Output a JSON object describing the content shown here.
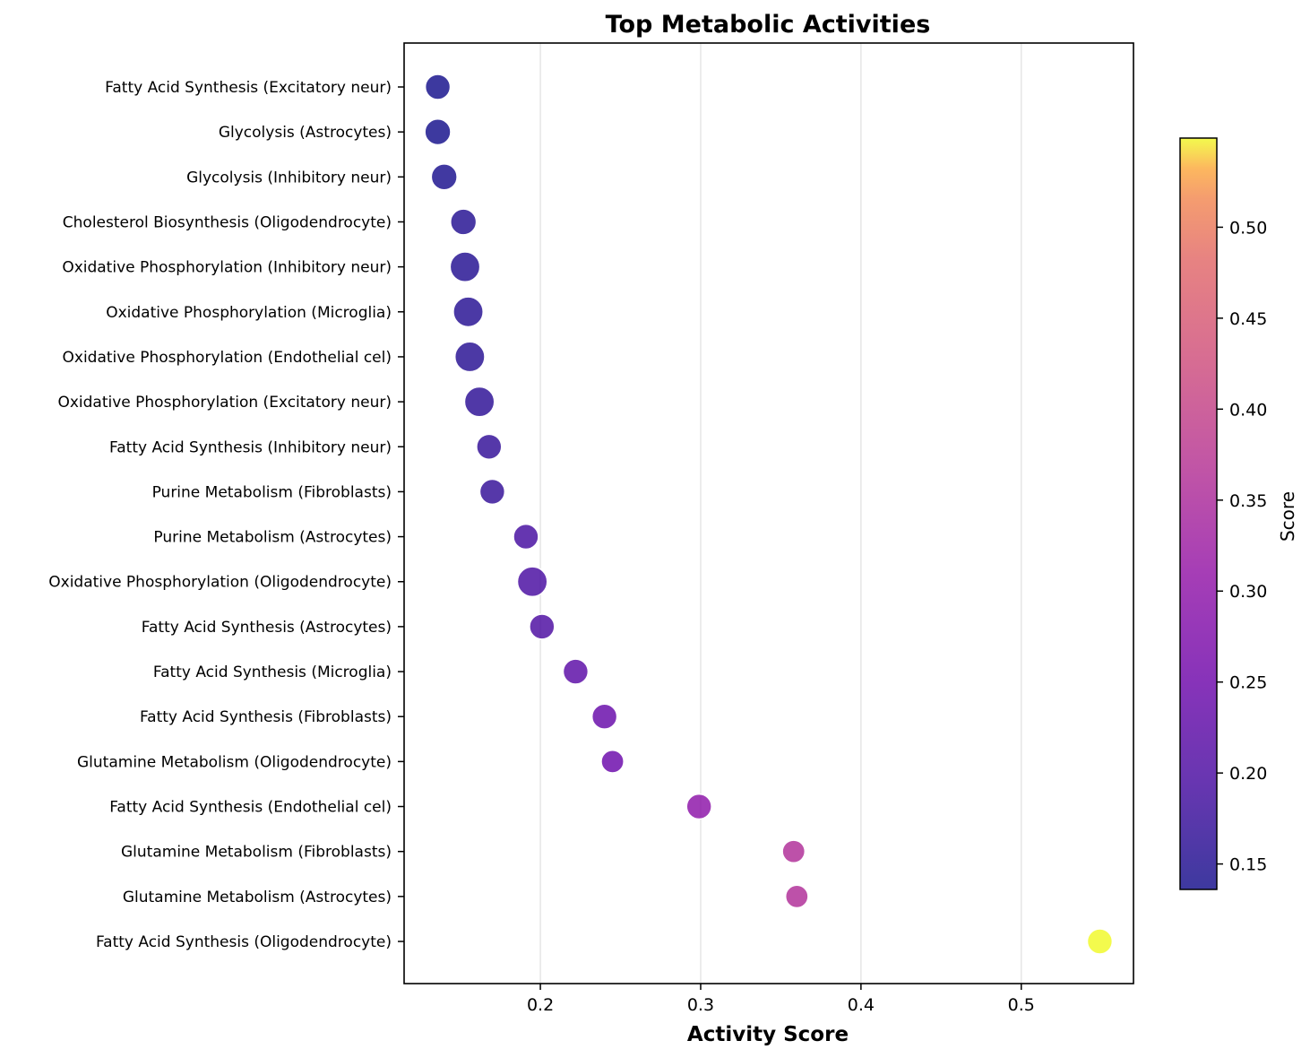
{
  "chart_data": {
    "type": "scatter",
    "title": "Top Metabolic Activities",
    "xlabel": "Activity Score",
    "ylabel": "",
    "xlim": [
      0.115,
      0.57
    ],
    "xticks": [
      0.2,
      0.3,
      0.4,
      0.5
    ],
    "xtick_labels": [
      "0.2",
      "0.3",
      "0.4",
      "0.5"
    ],
    "grid_x": true,
    "categories": [
      "Fatty Acid Synthesis (Excitatory neur)",
      "Glycolysis (Astrocytes)",
      "Glycolysis (Inhibitory neur)",
      "Cholesterol Biosynthesis (Oligodendrocyte)",
      "Oxidative Phosphorylation (Inhibitory neur)",
      "Oxidative Phosphorylation (Microglia)",
      "Oxidative Phosphorylation (Endothelial cel)",
      "Oxidative Phosphorylation (Excitatory neur)",
      "Fatty Acid Synthesis (Inhibitory neur)",
      "Purine Metabolism (Fibroblasts)",
      "Purine Metabolism (Astrocytes)",
      "Oxidative Phosphorylation (Oligodendrocyte)",
      "Fatty Acid Synthesis (Astrocytes)",
      "Fatty Acid Synthesis (Microglia)",
      "Fatty Acid Synthesis (Fibroblasts)",
      "Glutamine Metabolism (Oligodendrocyte)",
      "Fatty Acid Synthesis (Endothelial cel)",
      "Glutamine Metabolism (Fibroblasts)",
      "Glutamine Metabolism (Astrocytes)",
      "Fatty Acid Synthesis (Oligodendrocyte)"
    ],
    "values": [
      0.136,
      0.136,
      0.14,
      0.152,
      0.153,
      0.155,
      0.156,
      0.162,
      0.168,
      0.17,
      0.191,
      0.195,
      0.201,
      0.222,
      0.24,
      0.245,
      0.299,
      0.358,
      0.36,
      0.549
    ],
    "marker_size": [
      0.55,
      0.6,
      0.6,
      0.6,
      0.85,
      0.85,
      0.85,
      0.85,
      0.55,
      0.55,
      0.55,
      0.85,
      0.55,
      0.55,
      0.55,
      0.4,
      0.55,
      0.4,
      0.4,
      0.55
    ],
    "colorbar": {
      "label": "Score",
      "colormap": "plasma",
      "range": [
        0.136,
        0.549
      ],
      "ticks": [
        0.15,
        0.2,
        0.25,
        0.3,
        0.35,
        0.4,
        0.45,
        0.5
      ],
      "tick_labels": [
        "0.15",
        "0.20",
        "0.25",
        "0.30",
        "0.35",
        "0.40",
        "0.45",
        "0.50"
      ]
    }
  }
}
